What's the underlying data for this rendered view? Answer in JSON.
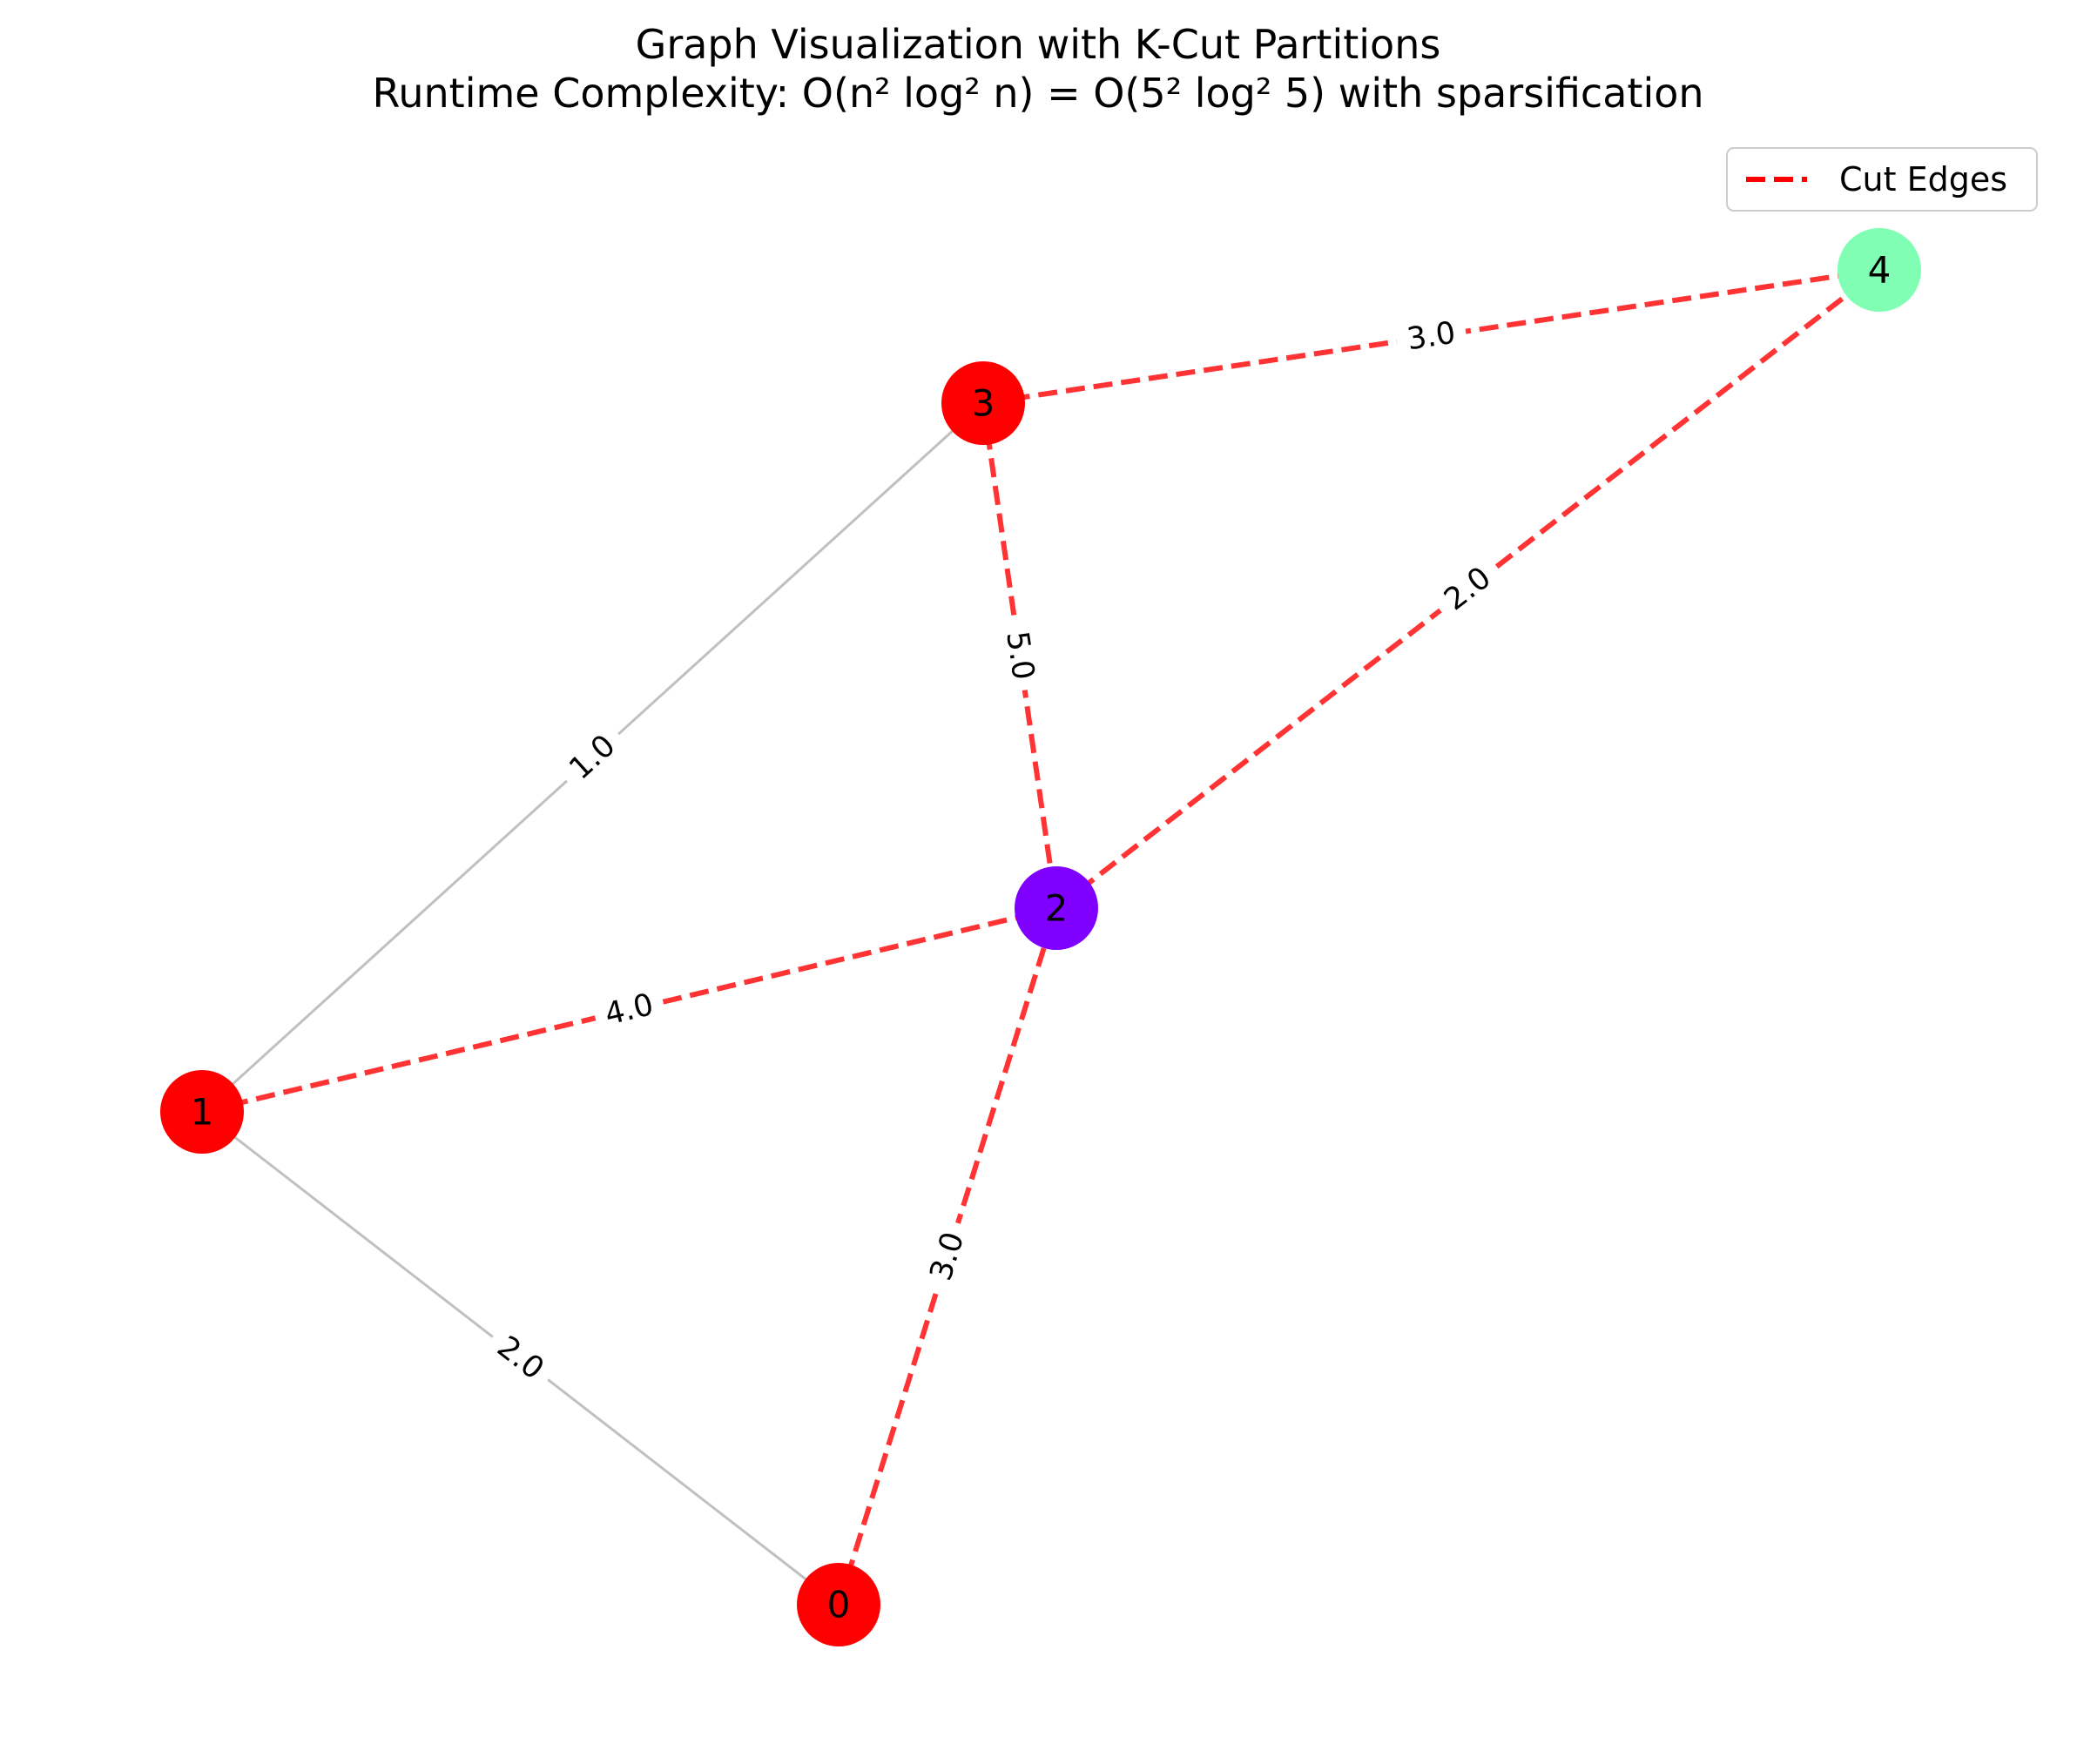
{
  "title": {
    "line1": "Graph Visualization with K-Cut Partitions",
    "line2": "Runtime Complexity: O(n² log² n) = O(5² log² 5) with sparsification"
  },
  "legend": {
    "cut_edges_label": "Cut Edges"
  },
  "colors": {
    "cut_edge": "#ff0000",
    "normal_edge": "#c0c0c0",
    "partition_red": "#ff0000",
    "partition_purple": "#7f00ff",
    "partition_green": "#80ffb4"
  },
  "nodes": [
    {
      "id": "0",
      "label": "0",
      "color": "#ff0000"
    },
    {
      "id": "1",
      "label": "1",
      "color": "#ff0000"
    },
    {
      "id": "2",
      "label": "2",
      "color": "#7f00ff"
    },
    {
      "id": "3",
      "label": "3",
      "color": "#ff0000"
    },
    {
      "id": "4",
      "label": "4",
      "color": "#80ffb4"
    }
  ],
  "edges": [
    {
      "source": "1",
      "target": "3",
      "weight": "1.0",
      "cut": false
    },
    {
      "source": "1",
      "target": "0",
      "weight": "2.0",
      "cut": false
    },
    {
      "source": "1",
      "target": "2",
      "weight": "4.0",
      "cut": true
    },
    {
      "source": "0",
      "target": "2",
      "weight": "3.0",
      "cut": true
    },
    {
      "source": "3",
      "target": "2",
      "weight": "5.0",
      "cut": true
    },
    {
      "source": "3",
      "target": "4",
      "weight": "3.0",
      "cut": true
    },
    {
      "source": "2",
      "target": "4",
      "weight": "2.0",
      "cut": true
    }
  ]
}
